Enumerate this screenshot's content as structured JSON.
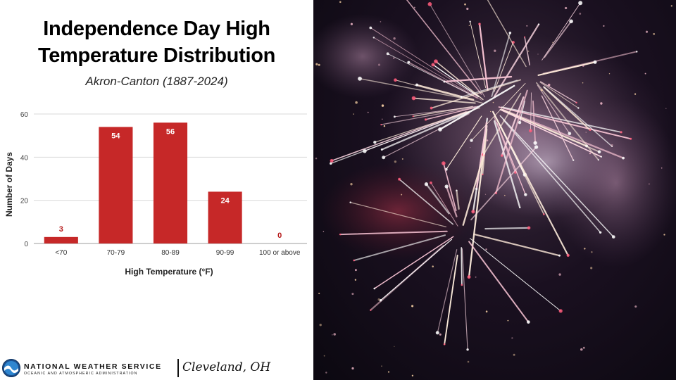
{
  "title_line1": "Independence Day High",
  "title_line2": "Temperature Distribution",
  "subtitle": "Akron-Canton (1887-2024)",
  "footer": {
    "agency": "NATIONAL WEATHER SERVICE",
    "agency_sub": "OCEANIC AND ATMOSPHERIC ADMINISTRATION",
    "office": "Cleveland, OH"
  },
  "colors": {
    "bar": "#c62828",
    "label": "#b71c1c",
    "grid": "#d9d9d9"
  },
  "chart_data": {
    "type": "bar",
    "categories": [
      "<70",
      "70-79",
      "80-89",
      "90-99",
      "100 or above"
    ],
    "values": [
      3,
      54,
      56,
      24,
      0
    ],
    "xlabel": "High Temperature (°F)",
    "ylabel": "Number of Days",
    "ylim": [
      0,
      60
    ],
    "yticks": [
      0,
      20,
      40,
      60
    ],
    "grid": true
  },
  "photo": {
    "icon": "fireworks-photo"
  }
}
